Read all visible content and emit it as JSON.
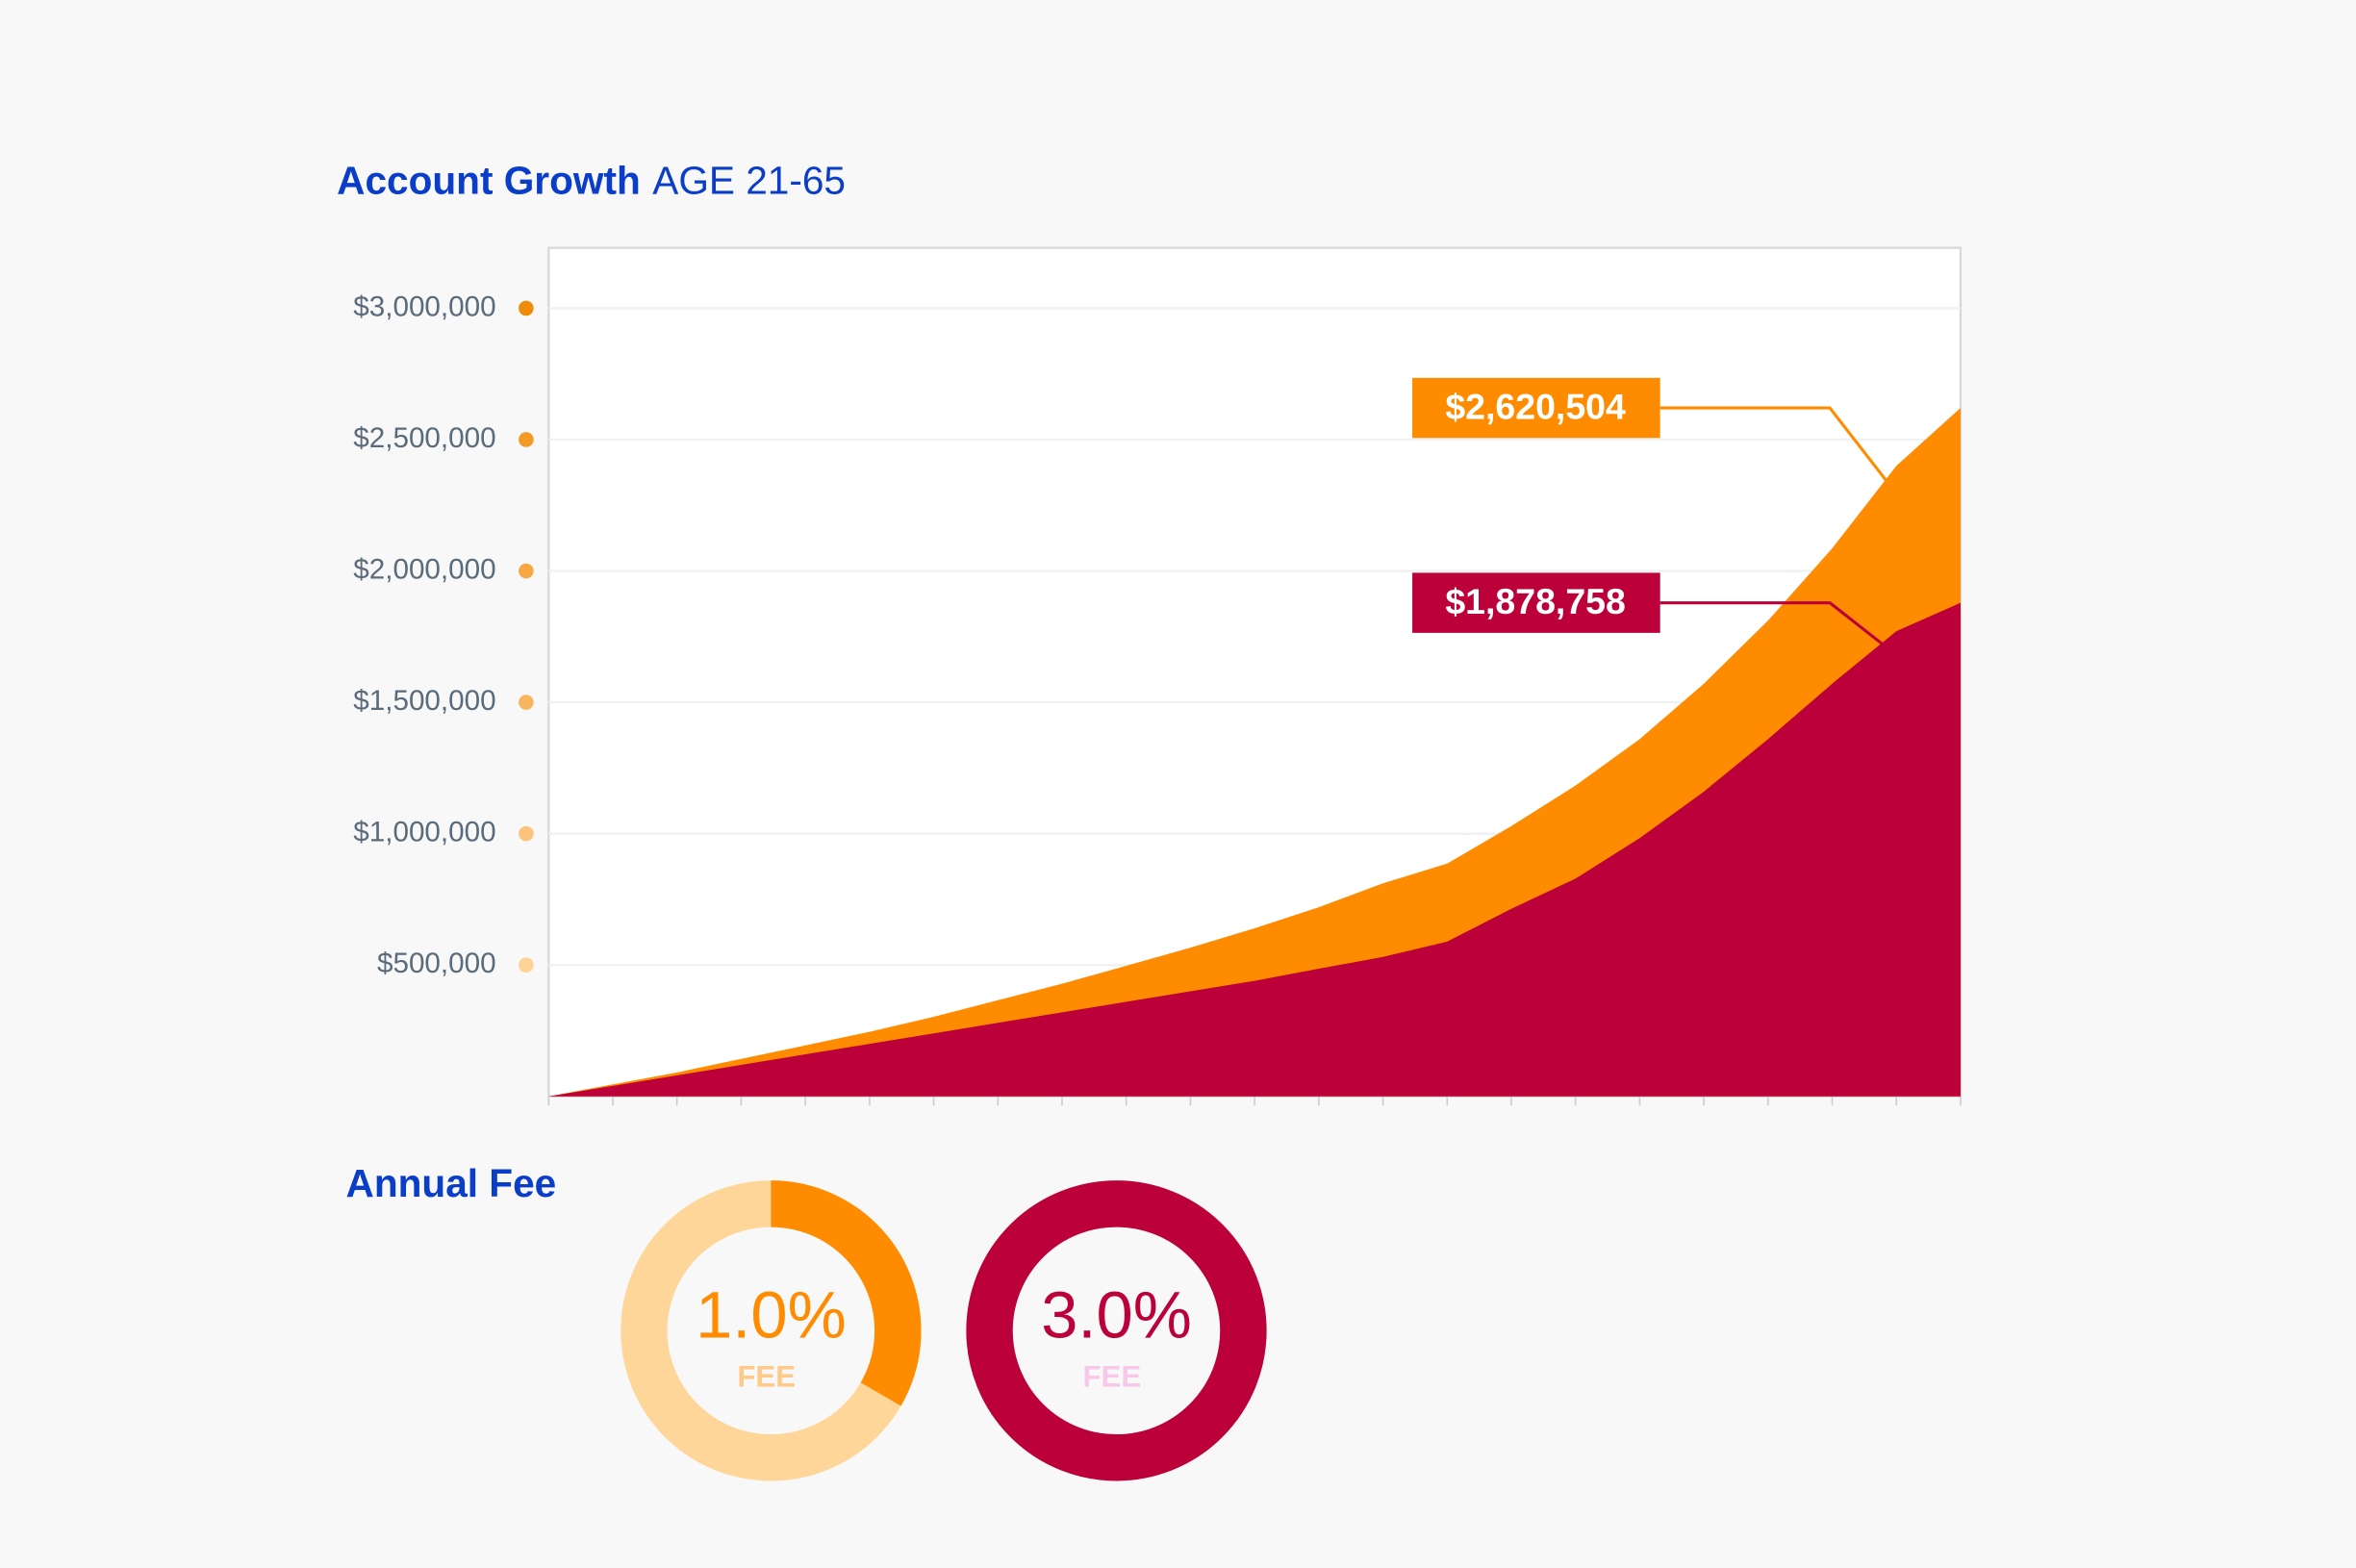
{
  "chart_data": [
    {
      "type": "area",
      "title": "Account Growth",
      "subtitle": "AGE 21-65",
      "categories": [
        null,
        null,
        null,
        null,
        null,
        null,
        null,
        null,
        null,
        null,
        null,
        null,
        null,
        null,
        null,
        null,
        null,
        null,
        null,
        null,
        null,
        null,
        null
      ],
      "series": [
        {
          "name": null,
          "color": "#ff8c00",
          "values": [
            0,
            46000,
            91000,
            143000,
            194000,
            246000,
            303000,
            366000,
            429000,
            497000,
            566000,
            640000,
            720000,
            811000,
            886000,
            1029000,
            1183000,
            1360000,
            1571000,
            1811000,
            2086000,
            2400000,
            2620504
          ],
          "value_labels": [
            null,
            null,
            null,
            null,
            null,
            null,
            null,
            null,
            null,
            null,
            null,
            null,
            null,
            null,
            null,
            null,
            null,
            null,
            null,
            null,
            null,
            null,
            "$2,620,504"
          ]
        },
        {
          "name": null,
          "color": "#bc003a",
          "values": [
            0,
            40000,
            80000,
            120000,
            160000,
            200000,
            240000,
            280000,
            320000,
            360000,
            400000,
            440000,
            486000,
            531000,
            589000,
            714000,
            829000,
            983000,
            1160000,
            1360000,
            1571000,
            1771000,
            1878758
          ],
          "value_labels": [
            null,
            null,
            null,
            null,
            null,
            null,
            null,
            null,
            null,
            null,
            null,
            null,
            null,
            null,
            null,
            null,
            null,
            null,
            null,
            null,
            null,
            null,
            "$1,878,758"
          ]
        }
      ],
      "ylim": [
        0,
        3230000
      ],
      "yticks": [
        {
          "value": 500000,
          "label": "$500,000"
        },
        {
          "value": 1000000,
          "label": "$1,000,000"
        },
        {
          "value": 1500000,
          "label": "$1,500,000"
        },
        {
          "value": 2000000,
          "label": "$2,000,000"
        },
        {
          "value": 2500000,
          "label": "$2,500,000"
        },
        {
          "value": 3000000,
          "label": "$3,000,000"
        }
      ],
      "grid": true
    },
    {
      "type": "donut",
      "title": "Annual Fee",
      "values": [
        1.0
      ],
      "value_labels": [
        "1.0%"
      ],
      "sublabel": "FEE",
      "range": [
        0,
        3.0
      ],
      "color": "#ff8c00",
      "track_color": "#ffd699",
      "sublabel_color": "#ffc98a"
    },
    {
      "type": "donut",
      "values": [
        3.0
      ],
      "value_labels": [
        "3.0%"
      ],
      "sublabel": "FEE",
      "range": [
        0,
        3.0
      ],
      "color": "#bc003a",
      "sublabel_color": "#f8c8e8"
    }
  ]
}
